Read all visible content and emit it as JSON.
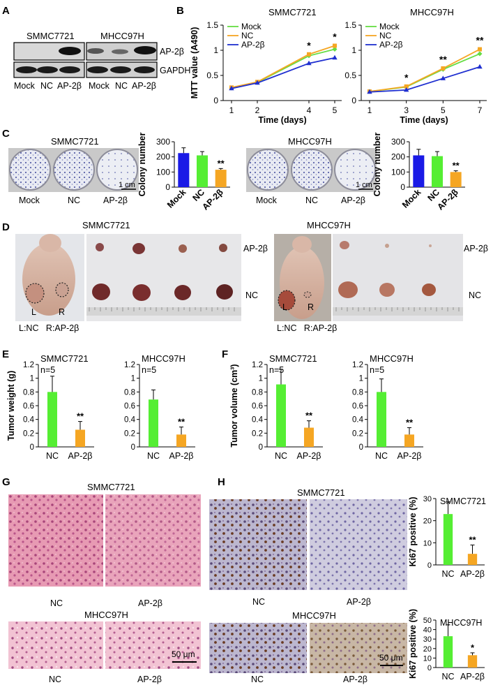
{
  "panel_letters": {
    "A": "A",
    "B": "B",
    "C": "C",
    "D": "D",
    "E": "E",
    "F": "F",
    "G": "G",
    "H": "H"
  },
  "colors": {
    "mock": "#66dd44",
    "nc": "#f5a623",
    "ap2b": "#1f2fd0",
    "green": "#55ee33",
    "orange": "#f5a623",
    "blue": "#1a1ae6"
  },
  "panelA": {
    "cell_lines": [
      "SMMC7721",
      "MHCC97H"
    ],
    "row_labels": [
      "AP-2β",
      "GAPDH"
    ],
    "lane_labels": [
      "Mock",
      "NC",
      "AP-2β",
      "Mock",
      "NC",
      "AP-2β"
    ]
  },
  "panelD": {
    "titles": [
      "SMMC7721",
      "MHCC97H"
    ],
    "row_labels": [
      "AP-2β",
      "NC",
      "AP-2β",
      "NC"
    ],
    "mouse_caption": [
      "L:NC   R:AP-2β",
      "L:NC   R:AP-2β"
    ],
    "side_labels": [
      "L",
      "R",
      "L",
      "R"
    ]
  },
  "panelG": {
    "titles": [
      "SMMC7721",
      "MHCC97H"
    ],
    "labels": [
      "NC",
      "AP-2β",
      "NC",
      "AP-2β"
    ],
    "scale": "50 μm"
  },
  "panelH": {
    "titles": [
      "SMMC7721",
      "MHCC97H"
    ],
    "labels": [
      "NC",
      "AP-2β",
      "NC",
      "AP-2β"
    ],
    "scale": "50 μm"
  },
  "colony_scale": "1 cm",
  "chart_data": [
    {
      "id": "B1",
      "type": "line",
      "title": "SMMC7721",
      "xlabel": "Time (days)",
      "ylabel": "MTT value (A490)",
      "x": [
        1,
        2,
        4,
        5
      ],
      "xticks": [
        "1",
        "2",
        "4",
        "5"
      ],
      "ylim": [
        0,
        1.5
      ],
      "yticks": [
        "0",
        "0.5",
        "1",
        "1.5"
      ],
      "series": [
        {
          "name": "Mock",
          "values": [
            0.25,
            0.36,
            0.89,
            1.02
          ]
        },
        {
          "name": "NC",
          "values": [
            0.26,
            0.37,
            0.92,
            1.09
          ]
        },
        {
          "name": "AP-2β",
          "values": [
            0.24,
            0.35,
            0.74,
            0.85
          ]
        }
      ],
      "annotations": [
        {
          "x": 4,
          "text": "*"
        },
        {
          "x": 5,
          "text": "*"
        }
      ]
    },
    {
      "id": "B2",
      "type": "line",
      "title": "MHCC97H",
      "xlabel": "Time (days)",
      "ylabel": "",
      "x": [
        1,
        3,
        5,
        7
      ],
      "xticks": [
        "1",
        "3",
        "5",
        "7"
      ],
      "ylim": [
        0,
        1.5
      ],
      "yticks": [
        "0",
        "0.5",
        "1",
        "1.5"
      ],
      "series": [
        {
          "name": "Mock",
          "values": [
            0.18,
            0.27,
            0.62,
            0.93
          ]
        },
        {
          "name": "NC",
          "values": [
            0.18,
            0.28,
            0.64,
            1.02
          ]
        },
        {
          "name": "AP-2β",
          "values": [
            0.17,
            0.21,
            0.44,
            0.67
          ]
        }
      ],
      "annotations": [
        {
          "x": 3,
          "text": "*"
        },
        {
          "x": 5,
          "text": "**"
        },
        {
          "x": 7,
          "text": "**"
        }
      ]
    },
    {
      "id": "C1",
      "type": "bar",
      "title": "SMMC7721",
      "ylabel": "Colony number",
      "categories": [
        "Mock",
        "NC",
        "AP-2β"
      ],
      "values": [
        225,
        210,
        115
      ],
      "errors": [
        35,
        25,
        8
      ],
      "ylim": [
        0,
        300
      ],
      "yticks": [
        "0",
        "100",
        "200",
        "300"
      ],
      "annotations": [
        "",
        "",
        "**"
      ]
    },
    {
      "id": "C2",
      "type": "bar",
      "title": "MHCC97H",
      "ylabel": "Colony number",
      "categories": [
        "Mock",
        "NC",
        "AP-2β"
      ],
      "values": [
        210,
        205,
        100
      ],
      "errors": [
        40,
        30,
        8
      ],
      "ylim": [
        0,
        300
      ],
      "yticks": [
        "0",
        "100",
        "200",
        "300"
      ],
      "annotations": [
        "",
        "",
        "**"
      ]
    },
    {
      "id": "E1",
      "type": "bar",
      "title": "SMMC7721",
      "ylabel": "Tumor weight (g)",
      "note": "n=5",
      "categories": [
        "NC",
        "AP-2β"
      ],
      "values": [
        0.8,
        0.25
      ],
      "errors": [
        0.23,
        0.12
      ],
      "ylim": [
        0,
        1.2
      ],
      "yticks": [
        "0",
        "0.2",
        "0.4",
        "0.6",
        "0.8",
        "1",
        "1.2"
      ],
      "annotations": [
        "",
        "**"
      ]
    },
    {
      "id": "E2",
      "type": "bar",
      "title": "MHCC97H",
      "ylabel": "",
      "note": "n=5",
      "categories": [
        "NC",
        "AP-2β"
      ],
      "values": [
        0.69,
        0.18
      ],
      "errors": [
        0.14,
        0.11
      ],
      "ylim": [
        0,
        1.2
      ],
      "yticks": [
        "0",
        "0.2",
        "0.4",
        "0.6",
        "0.8",
        "1",
        "1.2"
      ],
      "annotations": [
        "",
        "**"
      ]
    },
    {
      "id": "F1",
      "type": "bar",
      "title": "SMMC7721",
      "ylabel": "Tumor volume (cm³)",
      "note": "n=5",
      "categories": [
        "NC",
        "AP-2β"
      ],
      "values": [
        0.91,
        0.28
      ],
      "errors": [
        0.22,
        0.1
      ],
      "ylim": [
        0,
        1.2
      ],
      "yticks": [
        "0",
        "0.2",
        "0.4",
        "0.6",
        "0.8",
        "1",
        "1.2"
      ],
      "annotations": [
        "",
        "**"
      ]
    },
    {
      "id": "F2",
      "type": "bar",
      "title": "MHCC97H",
      "ylabel": "",
      "note": "n=5",
      "categories": [
        "NC",
        "AP-2β"
      ],
      "values": [
        0.8,
        0.18
      ],
      "errors": [
        0.19,
        0.1
      ],
      "ylim": [
        0,
        1.2
      ],
      "yticks": [
        "0",
        "0.2",
        "0.4",
        "0.6",
        "0.8",
        "1",
        "1.2"
      ],
      "annotations": [
        "",
        "**"
      ]
    },
    {
      "id": "H1",
      "type": "bar",
      "title": "SMMC7721",
      "ylabel": "Ki67 positive (%)",
      "categories": [
        "NC",
        "AP-2β"
      ],
      "values": [
        23,
        5
      ],
      "errors": [
        5.5,
        4
      ],
      "ylim": [
        0,
        30
      ],
      "yticks": [
        "0",
        "10",
        "20",
        "30"
      ],
      "annotations": [
        "",
        "**"
      ]
    },
    {
      "id": "H2",
      "type": "bar",
      "title": "MHCC97H",
      "ylabel": "Ki67 positive (%)",
      "categories": [
        "NC",
        "AP-2β"
      ],
      "values": [
        33,
        13
      ],
      "errors": [
        12,
        2.5
      ],
      "ylim": [
        0,
        50
      ],
      "yticks": [
        "0",
        "10",
        "20",
        "30",
        "40",
        "50"
      ],
      "annotations": [
        "",
        "*"
      ]
    }
  ]
}
